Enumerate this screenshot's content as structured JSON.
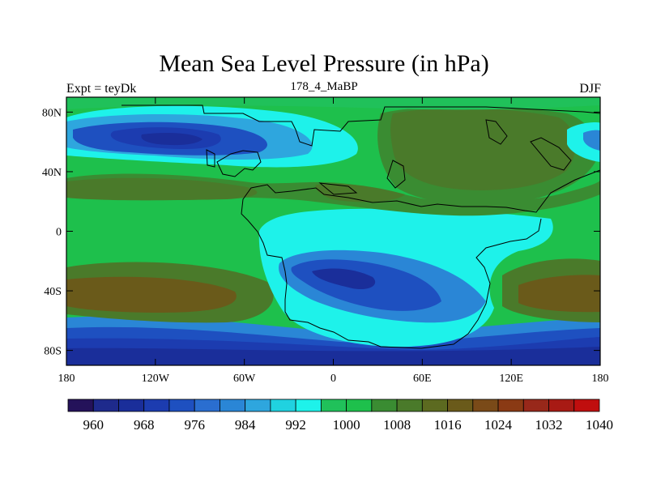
{
  "title": "Mean Sea Level Pressure (in hPa)",
  "left_label": "Expt = teyDk",
  "center_label": "178_4_MaBP",
  "right_label": "DJF",
  "lat_ticks": [
    {
      "value": 80,
      "label": "80N"
    },
    {
      "value": 40,
      "label": "40N"
    },
    {
      "value": 0,
      "label": "0"
    },
    {
      "value": -40,
      "label": "40S"
    },
    {
      "value": -80,
      "label": "80S"
    }
  ],
  "lon_ticks": [
    {
      "value": -180,
      "label": "180"
    },
    {
      "value": -120,
      "label": "120W"
    },
    {
      "value": -60,
      "label": "60W"
    },
    {
      "value": 0,
      "label": "0"
    },
    {
      "value": 60,
      "label": "60E"
    },
    {
      "value": 120,
      "label": "120E"
    },
    {
      "value": 180,
      "label": "180"
    }
  ],
  "colorbar": {
    "colors": [
      "#24125a",
      "#1e2a8c",
      "#1a2e9a",
      "#1c3cb0",
      "#1e50c0",
      "#2a6ed0",
      "#2a86d6",
      "#2ea6de",
      "#20d2e0",
      "#1ef2ea",
      "#20c15a",
      "#1ec04c",
      "#3a8c32",
      "#4a7a2a",
      "#5c6a20",
      "#6a5a1a",
      "#7a4a18",
      "#8a3a14",
      "#98281a",
      "#a81a14",
      "#c00e0e"
    ],
    "labels": [
      {
        "index": 2,
        "label": "960"
      },
      {
        "index": 4,
        "label": "968"
      },
      {
        "index": 6,
        "label": "976"
      },
      {
        "index": 8,
        "label": "984"
      },
      {
        "index": 10,
        "label": "992"
      },
      {
        "index": 12,
        "label": "1000"
      },
      {
        "index": 14,
        "label": "1008"
      },
      {
        "index": 16,
        "label": "1016"
      },
      {
        "index": 18,
        "label": "1024"
      },
      {
        "index": 20,
        "label": "1032"
      },
      {
        "index": 22,
        "label": "1040"
      }
    ]
  },
  "colors": {
    "background_field": "#1ec04c",
    "coastline": "#000000"
  }
}
